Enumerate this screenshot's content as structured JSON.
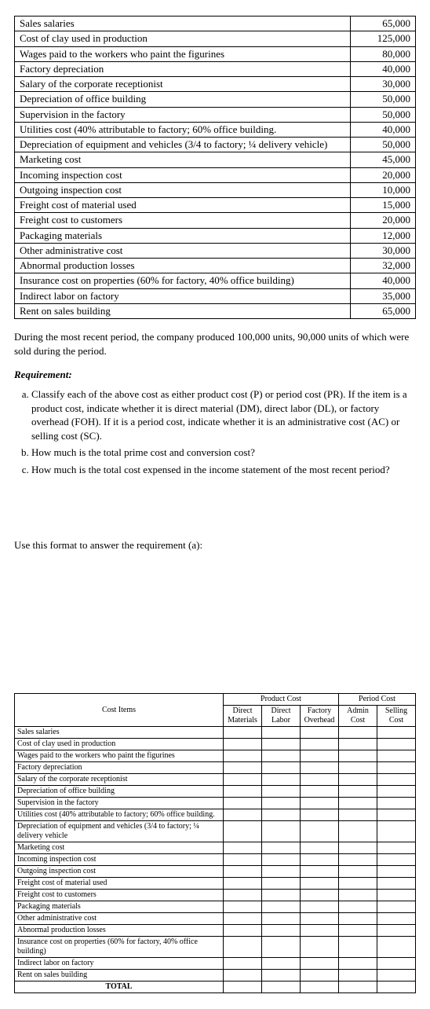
{
  "cost_items": [
    {
      "label": "Sales salaries",
      "amount": "65,000"
    },
    {
      "label": "Cost of clay used in production",
      "amount": "125,000"
    },
    {
      "label": "Wages paid to the workers who paint the figurines",
      "amount": "80,000"
    },
    {
      "label": "Factory depreciation",
      "amount": "40,000"
    },
    {
      "label": "Salary of the corporate receptionist",
      "amount": "30,000"
    },
    {
      "label": "Depreciation of office building",
      "amount": "50,000"
    },
    {
      "label": "Supervision in the factory",
      "amount": "50,000"
    },
    {
      "label": "Utilities cost (40% attributable to factory; 60% office building.",
      "amount": "40,000"
    },
    {
      "label": "Depreciation of equipment and vehicles (3/4 to factory; ¼ delivery vehicle)",
      "amount": "50,000"
    },
    {
      "label": "Marketing cost",
      "amount": "45,000"
    },
    {
      "label": "Incoming inspection cost",
      "amount": "20,000"
    },
    {
      "label": "Outgoing inspection cost",
      "amount": "10,000"
    },
    {
      "label": "Freight cost of material used",
      "amount": "15,000"
    },
    {
      "label": "Freight cost to customers",
      "amount": "20,000"
    },
    {
      "label": "Packaging materials",
      "amount": "12,000"
    },
    {
      "label": "Other administrative cost",
      "amount": "30,000"
    },
    {
      "label": "Abnormal production losses",
      "amount": "32,000"
    },
    {
      "label": "Insurance cost on properties (60% for factory, 40% office building)",
      "amount": "40,000"
    },
    {
      "label": "Indirect labor on factory",
      "amount": "35,000"
    },
    {
      "label": "Rent on sales building",
      "amount": "65,000"
    }
  ],
  "paragraph": "During the most recent period, the company produced 100,000 units, 90,000 units of which were sold during the period.",
  "requirement_heading": "Requirement:",
  "requirements": [
    "Classify each of the above cost as either product cost (P) or period cost (PR). If the item is a product cost, indicate whether it is direct material (DM), direct labor (DL), or factory overhead (FOH). If it is a period cost, indicate whether it is an administrative cost (AC) or selling cost (SC).",
    "How much is the total prime cost and conversion cost?",
    "How much is the total cost expensed in the income statement of the most recent period?"
  ],
  "format_note": "Use this format to answer the requirement (a):",
  "class_table": {
    "header_row1": {
      "cost_items": "Cost Items",
      "product_cost": "Product Cost",
      "period_cost": "Period Cost"
    },
    "header_row2": {
      "dm": "Direct Materials",
      "dl": "Direct Labor",
      "foh": "Factory Overhead",
      "ac": "Admin Cost",
      "sc": "Selling Cost"
    },
    "rows": [
      "Sales salaries",
      "Cost of clay used in production",
      "Wages paid to the workers who paint the figurines",
      "Factory depreciation",
      "Salary of the corporate receptionist",
      "Depreciation of office building",
      "Supervision in the factory",
      "Utilities cost (40% attributable to factory; 60% office building.",
      "Depreciation of equipment and vehicles (3/4 to factory; ¼ delivery vehicle",
      "Marketing cost",
      "Incoming inspection cost",
      "Outgoing inspection cost",
      "Freight cost of material used",
      "Freight cost to customers",
      "Packaging materials",
      "Other administrative cost",
      "Abnormal production losses",
      "Insurance cost on properties (60% for factory, 40% office building)",
      "Indirect labor on factory",
      "Rent on sales building"
    ],
    "total_label": "TOTAL"
  }
}
